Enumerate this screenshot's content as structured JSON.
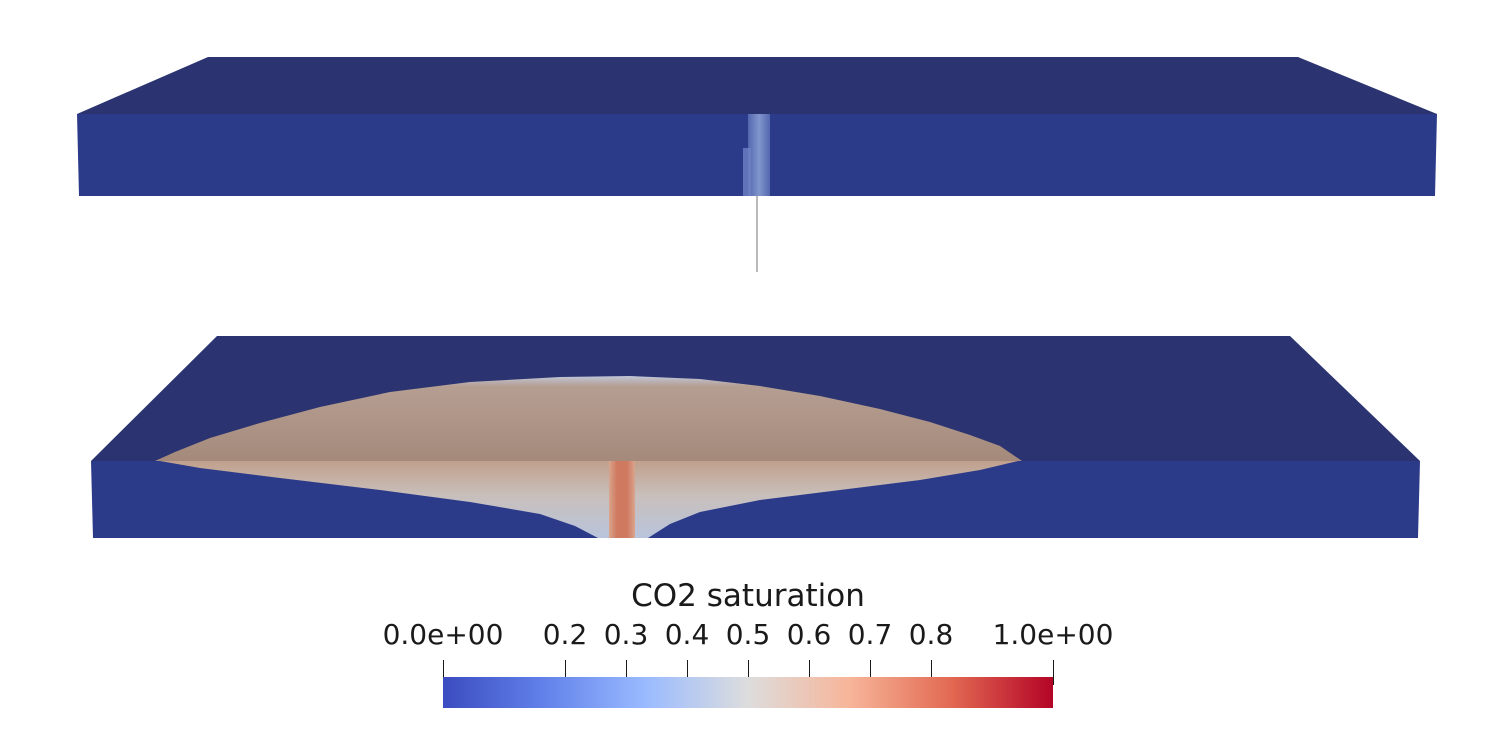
{
  "legend": {
    "title": "CO2 saturation",
    "range": [
      0,
      1
    ],
    "min_label": "0.0e+00",
    "max_label": "1.0e+00",
    "ticks": [
      {
        "value": 0.0,
        "label": "0.0e+00"
      },
      {
        "value": 0.2,
        "label": "0.2"
      },
      {
        "value": 0.3,
        "label": "0.3"
      },
      {
        "value": 0.4,
        "label": "0.4"
      },
      {
        "value": 0.5,
        "label": "0.5"
      },
      {
        "value": 0.6,
        "label": "0.6"
      },
      {
        "value": 0.7,
        "label": "0.7"
      },
      {
        "value": 0.8,
        "label": "0.8"
      },
      {
        "value": 1.0,
        "label": "1.0e+00"
      }
    ],
    "colormap": [
      "#3b4cc0",
      "#6f92f3",
      "#aac7fd",
      "#dddddd",
      "#f7b89c",
      "#e7745b",
      "#b40426"
    ]
  },
  "colors": {
    "slab_top": "#2b3470",
    "slab_front": "#2c3a8a",
    "plume": "#a88a7a",
    "well": "#d08e78",
    "background": "#ffffff"
  }
}
